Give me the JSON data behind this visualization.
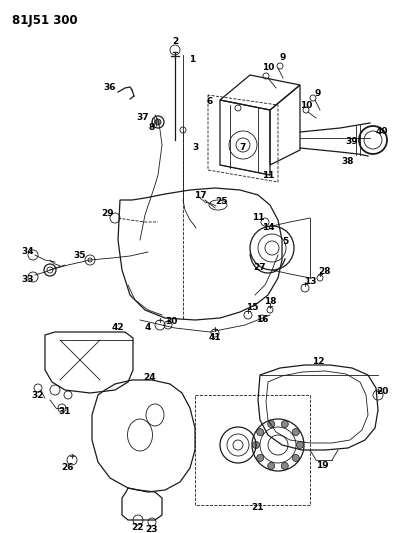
{
  "title": "81J51 300",
  "bg_color": "#ffffff",
  "line_color": "#1a1a1a",
  "figsize": [
    3.94,
    5.33
  ],
  "dpi": 100
}
